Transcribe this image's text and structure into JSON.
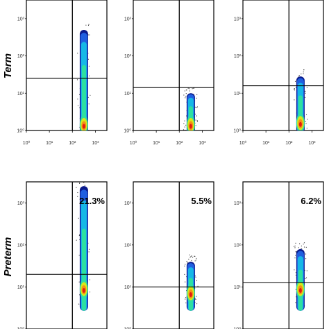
{
  "chart_data": {
    "type": "scatter",
    "description_kind": "flow-cytometry-density-grid",
    "rows": [
      {
        "label": "Term",
        "panels": [
          {
            "percent": "",
            "x_gate_decade": 2.0,
            "y_gate_decade": 1.4,
            "population": {
              "x_center": 2.5,
              "y_min": 0.0,
              "y_max": 2.7,
              "core_y": 0.15
            }
          },
          {
            "percent": "",
            "x_gate_decade": 2.0,
            "y_gate_decade": 1.15,
            "population": {
              "x_center": 2.5,
              "y_min": 0.0,
              "y_max": 1.0,
              "core_y": 0.15
            }
          },
          {
            "percent": "",
            "x_gate_decade": 2.0,
            "y_gate_decade": 1.2,
            "population": {
              "x_center": 2.5,
              "y_min": 0.0,
              "y_max": 1.45,
              "core_y": 0.2
            }
          }
        ]
      },
      {
        "label": "Preterm",
        "panels": [
          {
            "percent": "21.3%",
            "x_gate_decade": 2.0,
            "y_gate_decade": 1.3,
            "population": {
              "x_center": 2.5,
              "y_min": 0.5,
              "y_max": 3.4,
              "core_y": 0.95
            }
          },
          {
            "percent": "5.5%",
            "x_gate_decade": 2.0,
            "y_gate_decade": 1.0,
            "population": {
              "x_center": 2.5,
              "y_min": 0.5,
              "y_max": 1.6,
              "core_y": 0.85
            }
          },
          {
            "percent": "6.2%",
            "x_gate_decade": 2.0,
            "y_gate_decade": 1.1,
            "population": {
              "x_center": 2.5,
              "y_min": 0.5,
              "y_max": 1.9,
              "core_y": 0.95
            }
          }
        ]
      }
    ],
    "x_axis": {
      "scale": "log",
      "range_decades": [
        0,
        3.5
      ],
      "tick_labels": [
        "10⁰",
        "10¹",
        "10²",
        "10³"
      ]
    },
    "y_axis": {
      "scale": "log",
      "range_decades": [
        0,
        3.5
      ],
      "tick_labels": [
        "10⁰",
        "10¹",
        "10²",
        "10³"
      ]
    },
    "density_colors": [
      "#0a1a8c",
      "#1f5fe0",
      "#16b8e6",
      "#2ee0a0",
      "#d7e81a",
      "#f39016",
      "#e21a10"
    ]
  }
}
